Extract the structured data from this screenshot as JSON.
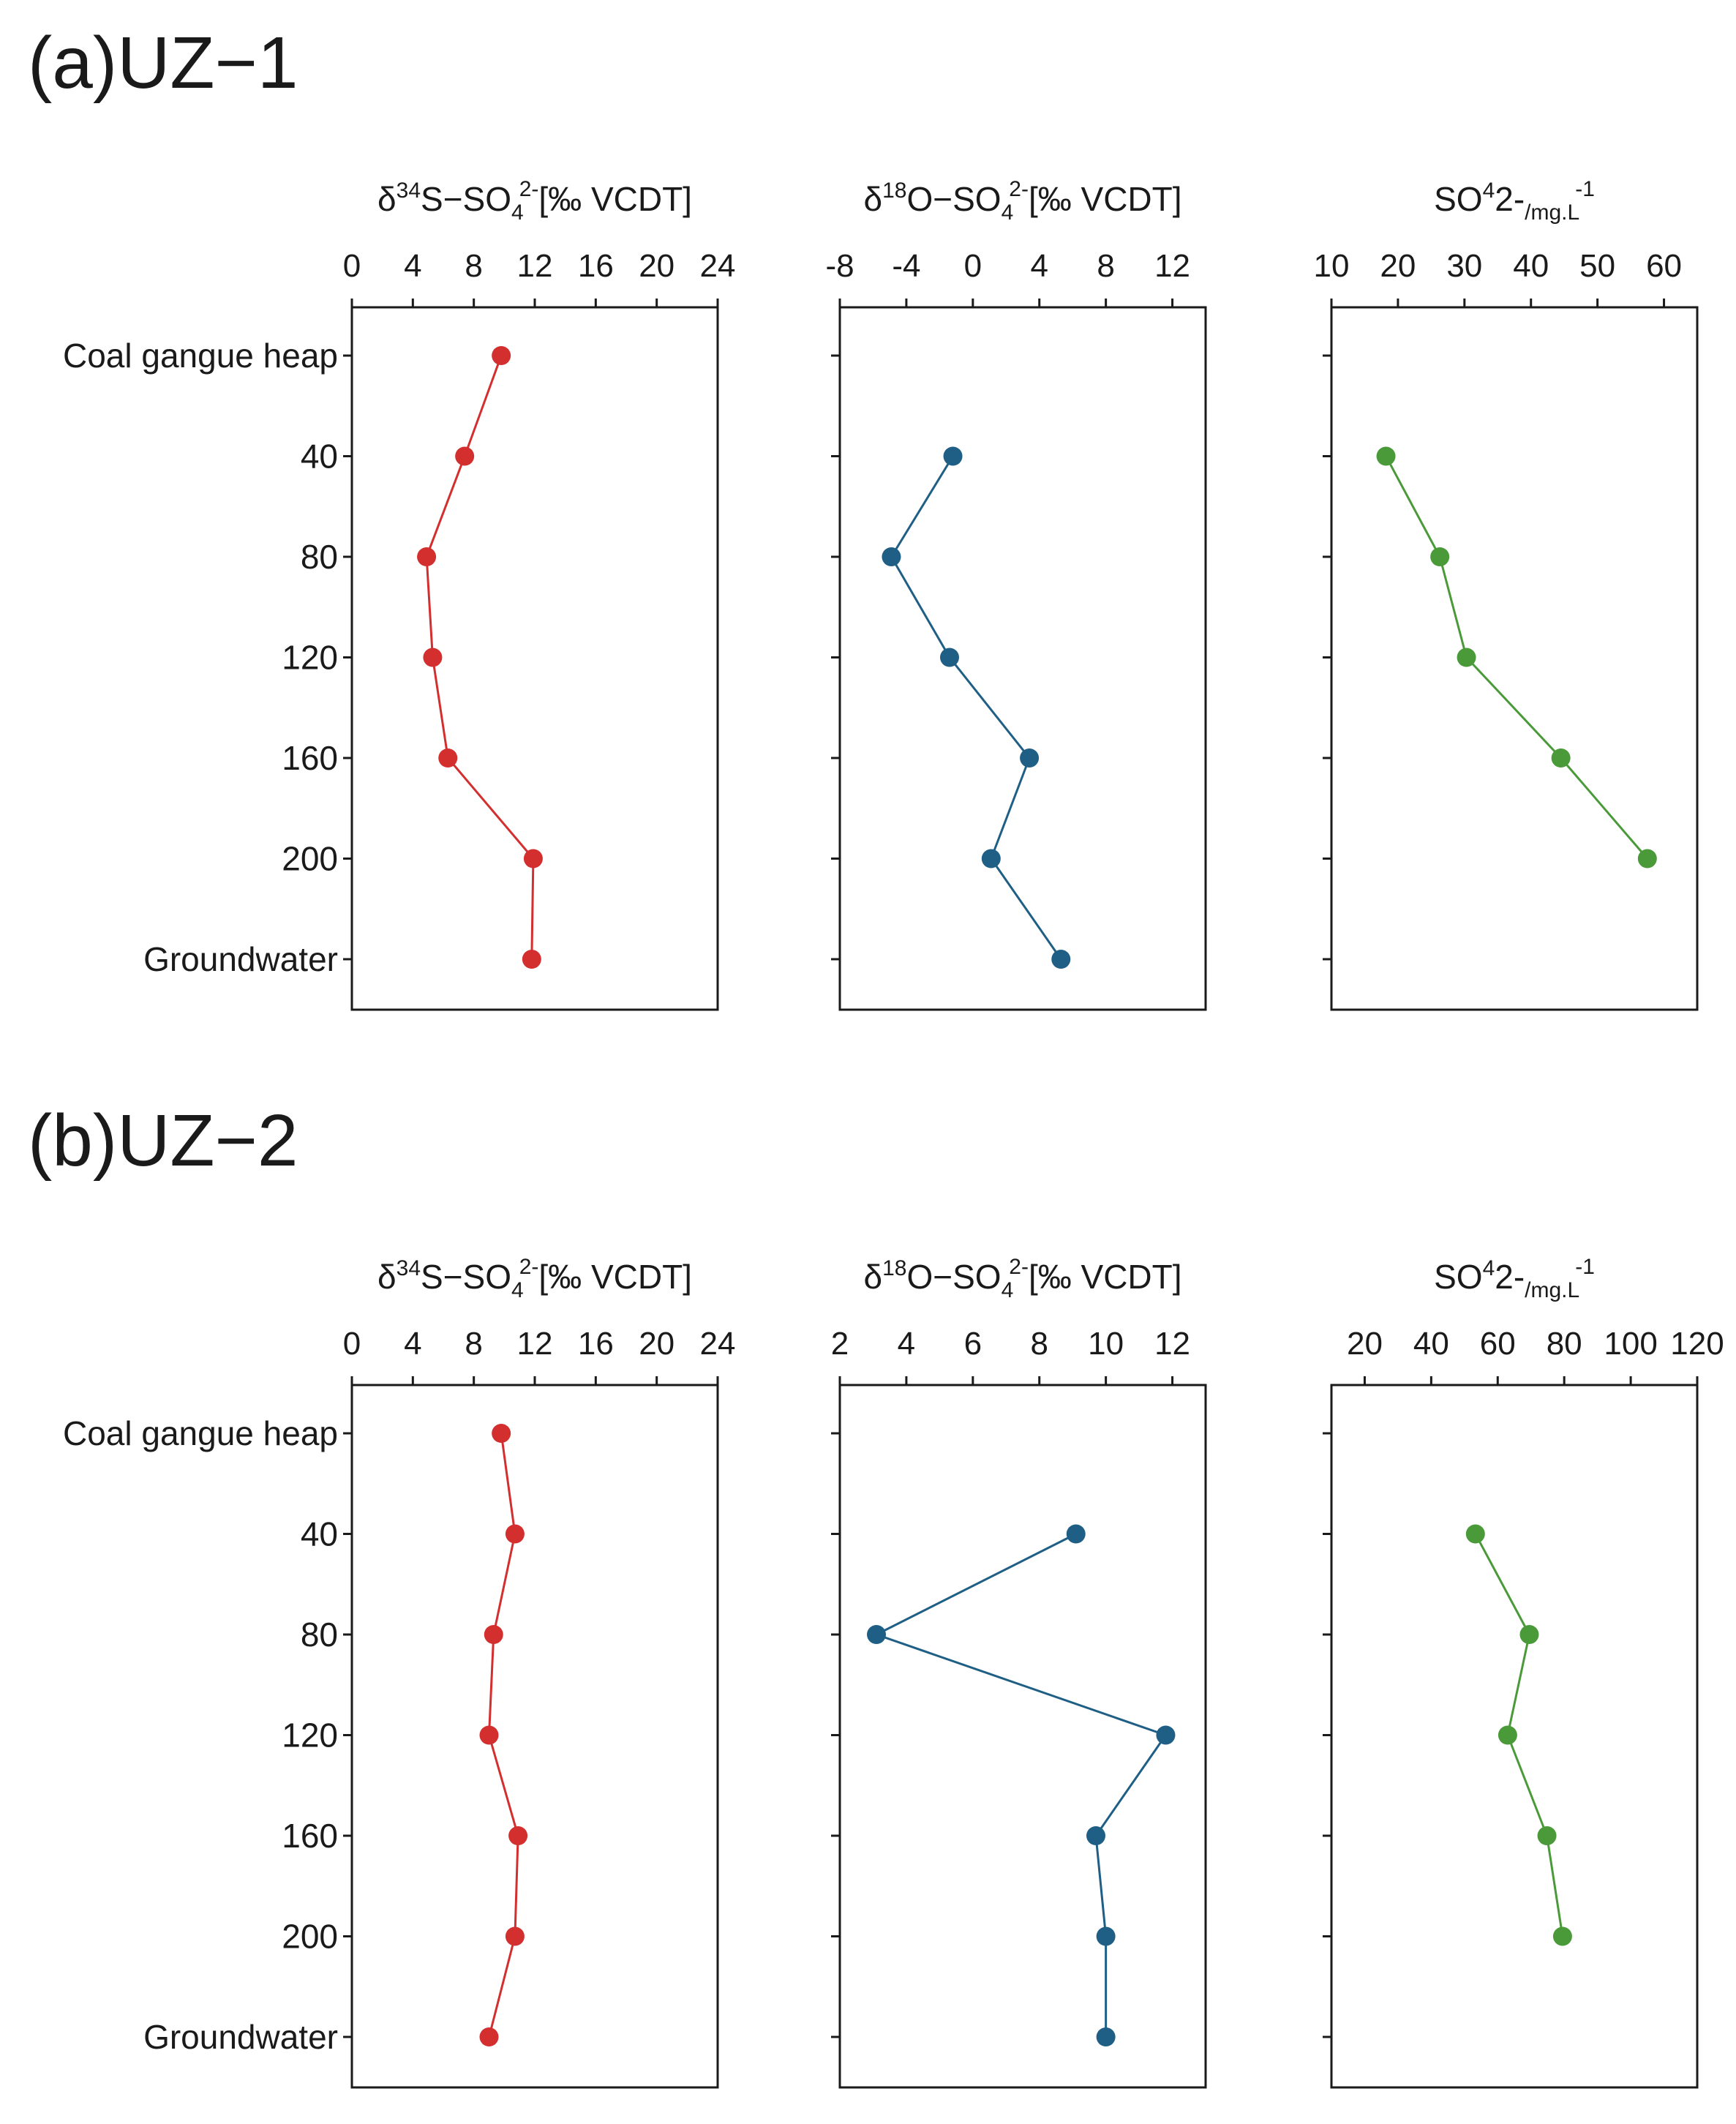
{
  "chart_data": [
    {
      "panel_label": "(a)UZ−1",
      "row_labels": [
        "Coal gangue heap",
        "40",
        "80",
        "120",
        "160",
        "200",
        "Groundwater"
      ],
      "charts": [
        {
          "type": "line",
          "title_parts": [
            "δ",
            "34",
            "S−SO",
            "4",
            "2-",
            "[‰ VCDT]"
          ],
          "xlim": [
            0,
            24
          ],
          "xticks": [
            "0",
            "4",
            "8",
            "12",
            "16",
            "20",
            "24"
          ],
          "color": "#d32f2f",
          "values": [
            9.8,
            7.4,
            4.9,
            5.3,
            6.3,
            11.9,
            11.8
          ]
        },
        {
          "type": "line",
          "title_parts": [
            "δ",
            "18",
            "O−SO",
            "4",
            "2-",
            "[‰ VCDT]"
          ],
          "xlim": [
            -8,
            14
          ],
          "xticks": [
            "-8",
            "-4",
            "0",
            "4",
            "8",
            "12"
          ],
          "color": "#1f5f85",
          "values": [
            null,
            -1.2,
            -4.9,
            -1.4,
            3.4,
            1.1,
            5.3
          ]
        },
        {
          "type": "line",
          "title_parts": [
            "SO",
            "4",
            "2-",
            "/mg.L",
            "-1",
            ""
          ],
          "xlim": [
            10,
            65
          ],
          "xticks": [
            "10",
            "20",
            "30",
            "40",
            "50",
            "60"
          ],
          "color": "#4a9a3a",
          "values": [
            null,
            18.2,
            26.3,
            30.3,
            44.5,
            57.5,
            null
          ]
        }
      ]
    },
    {
      "panel_label": "(b)UZ−2",
      "row_labels": [
        "Coal gangue heap",
        "40",
        "80",
        "120",
        "160",
        "200",
        "Groundwater"
      ],
      "charts": [
        {
          "type": "line",
          "title_parts": [
            "δ",
            "34",
            "S−SO",
            "4",
            "2-",
            "[‰ VCDT]"
          ],
          "xlim": [
            0,
            24
          ],
          "xticks": [
            "0",
            "4",
            "8",
            "12",
            "16",
            "20",
            "24"
          ],
          "color": "#d32f2f",
          "values": [
            9.8,
            10.7,
            9.3,
            9.0,
            10.9,
            10.7,
            9.0
          ]
        },
        {
          "type": "line",
          "title_parts": [
            "δ",
            "18",
            "O−SO",
            "4",
            "2-",
            "[‰ VCDT]"
          ],
          "xlim": [
            2,
            13
          ],
          "xticks": [
            "2",
            "4",
            "6",
            "8",
            "10",
            "12"
          ],
          "color": "#1f5f85",
          "values": [
            null,
            9.1,
            3.1,
            11.8,
            9.7,
            10.0,
            10.0
          ]
        },
        {
          "type": "line",
          "title_parts": [
            "SO",
            "4",
            "2-",
            "/mg.L",
            "-1",
            ""
          ],
          "xlim": [
            10,
            120
          ],
          "xticks": [
            "20",
            "40",
            "60",
            "80",
            "100",
            "120"
          ],
          "color": "#4a9a3a",
          "values": [
            null,
            53.3,
            69.5,
            63.0,
            74.8,
            79.5,
            null
          ]
        }
      ]
    }
  ]
}
